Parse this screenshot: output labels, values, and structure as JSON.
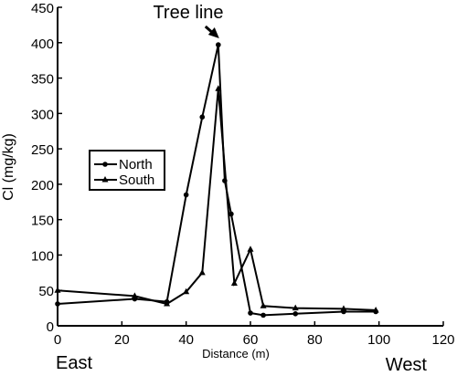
{
  "chart_data": {
    "type": "line",
    "title": "",
    "xlabel": "Distance (m)",
    "ylabel": "Cl (mg/kg)",
    "xlim": [
      0,
      120
    ],
    "ylim": [
      0,
      450
    ],
    "x_ticks": [
      0,
      20,
      40,
      60,
      80,
      100,
      120
    ],
    "y_ticks": [
      0,
      50,
      100,
      150,
      200,
      250,
      300,
      350,
      400,
      450
    ],
    "grid": false,
    "legend_position": "left",
    "annotations": {
      "tree_line": "Tree line",
      "tree_line_x": 48,
      "left_direction": "East",
      "right_direction": "West"
    },
    "series": [
      {
        "name": "North",
        "marker": "circle",
        "x": [
          0,
          24,
          34,
          40,
          45,
          50,
          52,
          54,
          60,
          64,
          74,
          89,
          99
        ],
        "y": [
          31,
          38,
          34,
          185,
          295,
          397,
          205,
          158,
          18,
          15,
          17,
          20,
          20
        ]
      },
      {
        "name": "South",
        "marker": "triangle",
        "x": [
          0,
          24,
          34,
          40,
          45,
          50,
          55,
          60,
          64,
          74,
          89,
          99
        ],
        "y": [
          50,
          42,
          31,
          48,
          75,
          335,
          60,
          108,
          28,
          25,
          24,
          22
        ]
      }
    ]
  }
}
